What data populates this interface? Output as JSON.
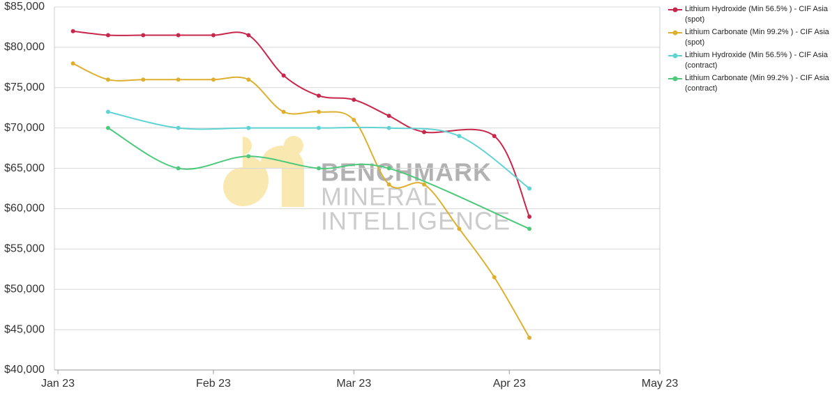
{
  "chart_data": {
    "type": "line",
    "watermark": [
      "BENCHMARK",
      "MINERAL",
      "INTELLIGENCE"
    ],
    "xlim": [
      -0.7,
      120
    ],
    "xticks": [
      {
        "value": 0,
        "label": "Jan 23"
      },
      {
        "value": 31,
        "label": "Feb 23"
      },
      {
        "value": 59,
        "label": "Mar 23"
      },
      {
        "value": 90,
        "label": "Apr 23"
      },
      {
        "value": 120,
        "label": "May 23"
      }
    ],
    "ylim": [
      40000,
      85000
    ],
    "yticks": [
      {
        "value": 40000,
        "label": "$40,000"
      },
      {
        "value": 45000,
        "label": "$45,000"
      },
      {
        "value": 50000,
        "label": "$50,000"
      },
      {
        "value": 55000,
        "label": "$55,000"
      },
      {
        "value": 60000,
        "label": "$60,000"
      },
      {
        "value": 65000,
        "label": "$65,000"
      },
      {
        "value": 70000,
        "label": "$70,000"
      },
      {
        "value": 75000,
        "label": "$75,000"
      },
      {
        "value": 80000,
        "label": "$80,000"
      },
      {
        "value": 85000,
        "label": "$85,000"
      }
    ],
    "grid": true,
    "legend": "right",
    "series": [
      {
        "name": "Lithium Hydroxide (Min 56.5% ) - CIF Asia (spot)",
        "color": "#c8264b",
        "x": [
          3,
          10,
          17,
          24,
          31,
          38,
          45,
          52,
          59,
          66,
          73,
          87,
          94
        ],
        "values": [
          82000,
          81500,
          81500,
          81500,
          81500,
          81500,
          76500,
          74000,
          73500,
          71500,
          69500,
          69000,
          59000
        ]
      },
      {
        "name": "Lithium Carbonate (Min 99.2% ) - CIF Asia (spot)",
        "color": "#deaf2f",
        "x": [
          3,
          10,
          17,
          24,
          31,
          38,
          45,
          52,
          59,
          66,
          73,
          80,
          87,
          94
        ],
        "values": [
          78000,
          76000,
          76000,
          76000,
          76000,
          76000,
          72000,
          72000,
          71000,
          63000,
          63000,
          57500,
          51500,
          44000
        ]
      },
      {
        "name": "Lithium Hydroxide (Min 56.5% ) - CIF Asia (contract)",
        "color": "#5fd3d3",
        "x": [
          10,
          24,
          38,
          52,
          66,
          80,
          94
        ],
        "values": [
          72000,
          70000,
          70000,
          70000,
          70000,
          69000,
          62500
        ]
      },
      {
        "name": "Lithium Carbonate (Min 99.2% ) - CIF Asia (contract)",
        "color": "#4cc97a",
        "x": [
          10,
          24,
          38,
          52,
          66,
          94
        ],
        "values": [
          70000,
          65000,
          66500,
          65000,
          65000,
          57500
        ]
      }
    ]
  }
}
